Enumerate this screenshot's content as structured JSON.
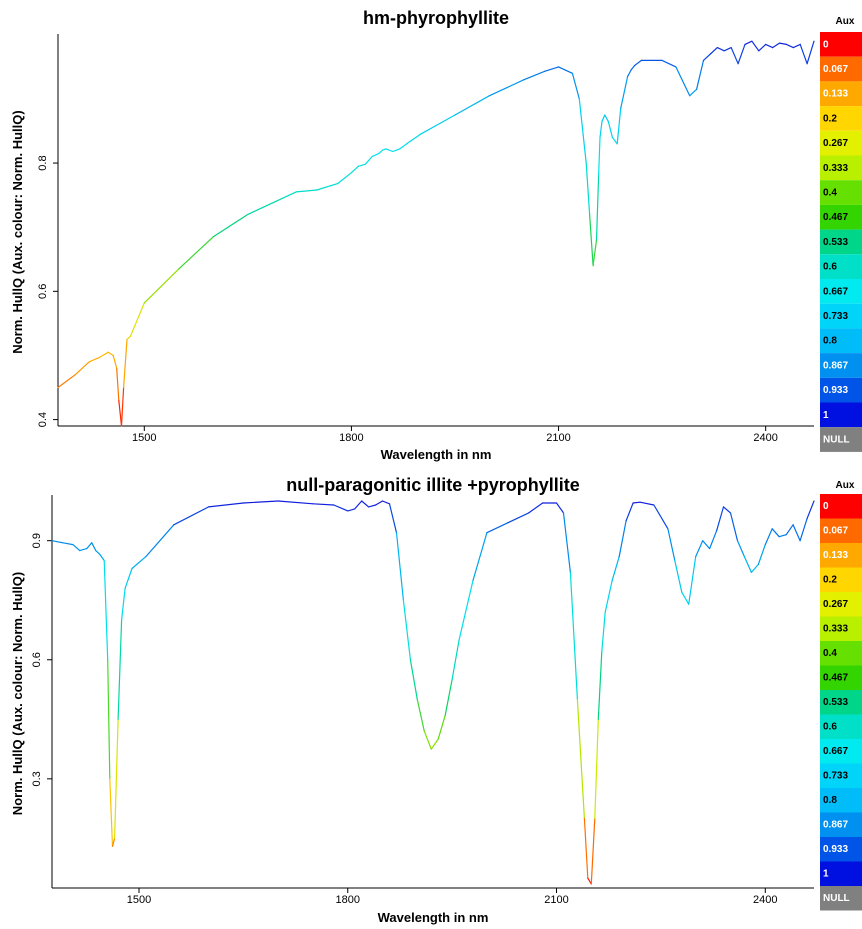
{
  "colors": {
    "legend": [
      "#ff0000",
      "#ff6a00",
      "#ffa800",
      "#ffd600",
      "#e3f000",
      "#b8f000",
      "#66e000",
      "#33d400",
      "#00d68a",
      "#00e0c8",
      "#00eaf0",
      "#00d4f8",
      "#00bcf8",
      "#0090f0",
      "#0055e8",
      "#0010e0"
    ],
    "null": "#808080"
  },
  "legend": {
    "title": "Aux",
    "labels": [
      "0",
      "0.067",
      "0.133",
      "0.2",
      "0.267",
      "0.333",
      "0.4",
      "0.467",
      "0.533",
      "0.6",
      "0.667",
      "0.733",
      "0.8",
      "0.867",
      "0.933",
      "1",
      "NULL"
    ]
  },
  "chart_data": [
    {
      "type": "line",
      "title": "hm-phyrophyllite",
      "xlabel": "Wavelength in nm",
      "ylabel": "Norm. HullQ  (Aux. colour: Norm. HullQ)",
      "xlim": [
        1375,
        2470
      ],
      "ylim": [
        0.39,
        0.995
      ],
      "xticks": [
        1500,
        1800,
        2100,
        2400
      ],
      "yticks": [
        0.4,
        0.6,
        0.8
      ],
      "colour_by": "y",
      "series": [
        {
          "x": [
            1375,
            1400,
            1420,
            1435,
            1448,
            1455,
            1460,
            1463,
            1467,
            1470,
            1475,
            1480,
            1500,
            1550,
            1600,
            1650,
            1700,
            1720,
            1750,
            1780,
            1800,
            1810,
            1820,
            1830,
            1840,
            1845,
            1850,
            1860,
            1870,
            1880,
            1900,
            1950,
            2000,
            2050,
            2080,
            2100,
            2120,
            2130,
            2140,
            2145,
            2150,
            2155,
            2158,
            2160,
            2163,
            2167,
            2172,
            2178,
            2185,
            2190,
            2200,
            2205,
            2210,
            2220,
            2250,
            2270,
            2290,
            2300,
            2310,
            2320,
            2330,
            2340,
            2350,
            2360,
            2370,
            2380,
            2390,
            2400,
            2410,
            2420,
            2430,
            2440,
            2450,
            2460,
            2470
          ],
          "y": [
            0.45,
            0.47,
            0.49,
            0.497,
            0.505,
            0.5,
            0.48,
            0.43,
            0.39,
            0.45,
            0.525,
            0.53,
            0.582,
            0.635,
            0.685,
            0.72,
            0.745,
            0.755,
            0.758,
            0.768,
            0.785,
            0.795,
            0.798,
            0.81,
            0.815,
            0.82,
            0.822,
            0.818,
            0.822,
            0.83,
            0.845,
            0.875,
            0.905,
            0.93,
            0.943,
            0.95,
            0.94,
            0.9,
            0.8,
            0.72,
            0.64,
            0.68,
            0.78,
            0.84,
            0.865,
            0.875,
            0.865,
            0.84,
            0.83,
            0.885,
            0.935,
            0.945,
            0.952,
            0.96,
            0.96,
            0.95,
            0.905,
            0.915,
            0.96,
            0.97,
            0.98,
            0.975,
            0.98,
            0.955,
            0.985,
            0.99,
            0.975,
            0.985,
            0.98,
            0.987,
            0.985,
            0.98,
            0.985,
            0.955,
            0.99
          ]
        }
      ]
    },
    {
      "type": "line",
      "title": "null-paragonitic illite +pyrophyllite",
      "xlabel": "Wavelength in nm",
      "ylabel": "Norm. HullQ  (Aux. colour: Norm. HullQ)",
      "xlim": [
        1375,
        2470
      ],
      "ylim": [
        0.025,
        1.005
      ],
      "xticks": [
        1500,
        1800,
        2100,
        2400
      ],
      "yticks": [
        0.3,
        0.6,
        0.9
      ],
      "colour_by": "y",
      "series": [
        {
          "x": [
            1375,
            1390,
            1405,
            1415,
            1425,
            1432,
            1438,
            1444,
            1450,
            1455,
            1458,
            1462,
            1465,
            1470,
            1475,
            1480,
            1490,
            1510,
            1550,
            1600,
            1650,
            1700,
            1750,
            1780,
            1800,
            1810,
            1820,
            1830,
            1840,
            1850,
            1860,
            1870,
            1880,
            1890,
            1900,
            1910,
            1920,
            1930,
            1940,
            1950,
            1960,
            1980,
            2000,
            2030,
            2060,
            2080,
            2100,
            2110,
            2120,
            2130,
            2140,
            2145,
            2150,
            2155,
            2160,
            2165,
            2170,
            2180,
            2190,
            2200,
            2210,
            2220,
            2240,
            2260,
            2270,
            2280,
            2290,
            2300,
            2310,
            2320,
            2330,
            2340,
            2350,
            2360,
            2370,
            2380,
            2390,
            2400,
            2410,
            2420,
            2430,
            2440,
            2450,
            2460,
            2470
          ],
          "y": [
            0.9,
            0.895,
            0.89,
            0.875,
            0.88,
            0.895,
            0.875,
            0.865,
            0.85,
            0.6,
            0.3,
            0.13,
            0.15,
            0.45,
            0.7,
            0.78,
            0.83,
            0.86,
            0.94,
            0.985,
            0.995,
            1.0,
            0.993,
            0.99,
            0.975,
            0.98,
            1.0,
            0.985,
            0.99,
            1.0,
            0.993,
            0.92,
            0.75,
            0.6,
            0.5,
            0.42,
            0.375,
            0.4,
            0.46,
            0.55,
            0.65,
            0.8,
            0.92,
            0.945,
            0.97,
            0.995,
            0.995,
            0.97,
            0.82,
            0.5,
            0.2,
            0.05,
            0.035,
            0.2,
            0.45,
            0.62,
            0.72,
            0.8,
            0.86,
            0.95,
            0.995,
            0.997,
            0.99,
            0.93,
            0.85,
            0.77,
            0.74,
            0.86,
            0.9,
            0.88,
            0.925,
            0.985,
            0.97,
            0.9,
            0.86,
            0.82,
            0.84,
            0.89,
            0.93,
            0.91,
            0.915,
            0.94,
            0.9,
            0.955,
            1.0
          ]
        }
      ]
    }
  ]
}
